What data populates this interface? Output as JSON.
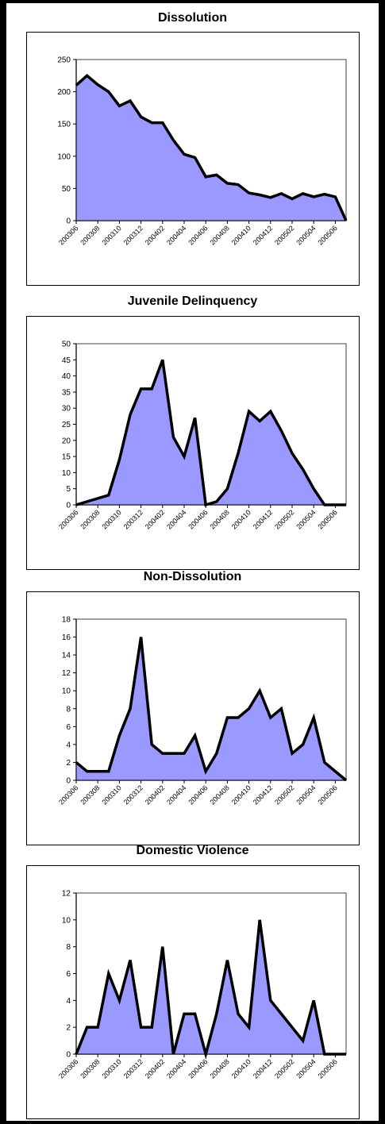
{
  "chart_data": [
    {
      "type": "area",
      "title": "Dissolution",
      "xlabel": "",
      "ylabel": "",
      "x": [
        "200306",
        "200307",
        "200308",
        "200309",
        "200310",
        "200311",
        "200312",
        "200401",
        "200402",
        "200403",
        "200404",
        "200405",
        "200406",
        "200407",
        "200408",
        "200409",
        "200410",
        "200411",
        "200412",
        "200501",
        "200502",
        "200503",
        "200504",
        "200505",
        "200506",
        "200507"
      ],
      "x_ticks": [
        "200306",
        "200308",
        "200310",
        "200312",
        "200402",
        "200404",
        "200406",
        "200408",
        "200410",
        "200412",
        "200502",
        "200504",
        "200506"
      ],
      "values": [
        210,
        225,
        211,
        200,
        178,
        186,
        161,
        152,
        152,
        125,
        103,
        98,
        68,
        71,
        58,
        56,
        43,
        40,
        36,
        42,
        34,
        42,
        37,
        41,
        37,
        0
      ],
      "ylim": [
        0,
        250
      ],
      "yticks": [
        0,
        50,
        100,
        150,
        200,
        250
      ],
      "fill": "#9999ff",
      "stroke": "#000000",
      "grid": false
    },
    {
      "type": "area",
      "title": "Juvenile Delinquency",
      "xlabel": "",
      "ylabel": "",
      "x": [
        "200306",
        "200307",
        "200308",
        "200309",
        "200310",
        "200311",
        "200312",
        "200401",
        "200402",
        "200403",
        "200404",
        "200405",
        "200406",
        "200407",
        "200408",
        "200409",
        "200410",
        "200411",
        "200412",
        "200501",
        "200502",
        "200503",
        "200504",
        "200505",
        "200506",
        "200507"
      ],
      "x_ticks": [
        "200306",
        "200308",
        "200310",
        "200312",
        "200402",
        "200404",
        "200406",
        "200408",
        "200410",
        "200412",
        "200502",
        "200504",
        "200506"
      ],
      "values": [
        0,
        1,
        2,
        3,
        14,
        28,
        36,
        36,
        45,
        21,
        15,
        27,
        0,
        1,
        5,
        16,
        29,
        26,
        29,
        23,
        16,
        11,
        5,
        0,
        0,
        0
      ],
      "ylim": [
        0,
        50
      ],
      "yticks": [
        0,
        5,
        10,
        15,
        20,
        25,
        30,
        35,
        40,
        45,
        50
      ],
      "fill": "#9999ff",
      "stroke": "#000000",
      "grid": false
    },
    {
      "type": "area",
      "title": "Non-Dissolution",
      "xlabel": "",
      "ylabel": "",
      "x": [
        "200306",
        "200307",
        "200308",
        "200309",
        "200310",
        "200311",
        "200312",
        "200401",
        "200402",
        "200403",
        "200404",
        "200405",
        "200406",
        "200407",
        "200408",
        "200409",
        "200410",
        "200411",
        "200412",
        "200501",
        "200502",
        "200503",
        "200504",
        "200505",
        "200506",
        "200507"
      ],
      "x_ticks": [
        "200306",
        "200308",
        "200310",
        "200312",
        "200402",
        "200404",
        "200406",
        "200408",
        "200410",
        "200412",
        "200502",
        "200504",
        "200506"
      ],
      "values": [
        2,
        1,
        1,
        1,
        5,
        8,
        16,
        4,
        3,
        3,
        3,
        5,
        1,
        3,
        7,
        7,
        8,
        10,
        7,
        8,
        3,
        4,
        7,
        2,
        1,
        0
      ],
      "ylim": [
        0,
        18
      ],
      "yticks": [
        0,
        2,
        4,
        6,
        8,
        10,
        12,
        14,
        16,
        18
      ],
      "fill": "#9999ff",
      "stroke": "#000000",
      "grid": false
    },
    {
      "type": "area",
      "title": "Domestic Violence",
      "xlabel": "",
      "ylabel": "",
      "x": [
        "200306",
        "200307",
        "200308",
        "200309",
        "200310",
        "200311",
        "200312",
        "200401",
        "200402",
        "200403",
        "200404",
        "200405",
        "200406",
        "200407",
        "200408",
        "200409",
        "200410",
        "200411",
        "200412",
        "200501",
        "200502",
        "200503",
        "200504",
        "200505",
        "200506",
        "200507"
      ],
      "x_ticks": [
        "200306",
        "200308",
        "200310",
        "200312",
        "200402",
        "200404",
        "200406",
        "200408",
        "200410",
        "200412",
        "200502",
        "200504",
        "200506"
      ],
      "values": [
        0,
        2,
        2,
        6,
        4,
        7,
        2,
        2,
        8,
        0,
        3,
        3,
        0,
        3,
        7,
        3,
        2,
        10,
        4,
        3,
        2,
        1,
        4,
        0,
        0,
        0
      ],
      "ylim": [
        0,
        12
      ],
      "yticks": [
        0,
        2,
        4,
        6,
        8,
        10,
        12
      ],
      "fill": "#9999ff",
      "stroke": "#000000",
      "grid": false
    }
  ]
}
